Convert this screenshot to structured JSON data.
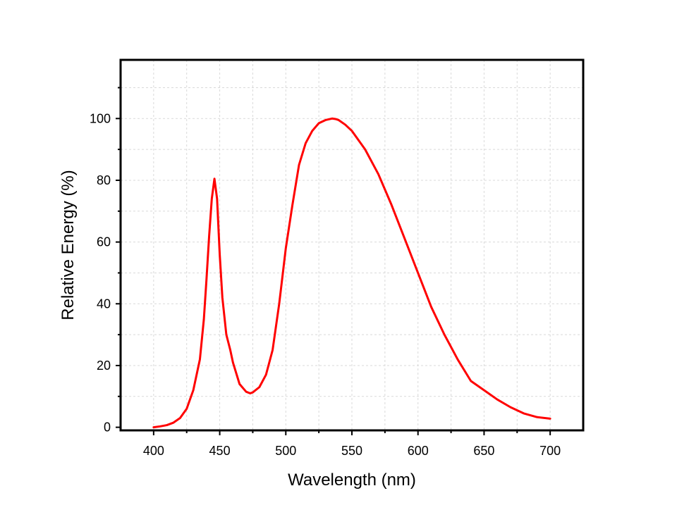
{
  "chart_data": {
    "type": "line",
    "title": "",
    "xlabel": "Wavelength (nm)",
    "ylabel": "Relative Energy (%)",
    "xlim": [
      375,
      725
    ],
    "ylim": [
      -1,
      119
    ],
    "xticks": [
      400,
      450,
      500,
      550,
      600,
      650,
      700
    ],
    "yticks": [
      0,
      20,
      40,
      60,
      80,
      100
    ],
    "xtick_labels": [
      "400",
      "450",
      "500",
      "550",
      "600",
      "650",
      "700"
    ],
    "ytick_labels": [
      "0",
      "20",
      "40",
      "60",
      "80",
      "100"
    ],
    "grid": true,
    "line_color": "#ff0000",
    "series": [
      {
        "x": [
          400,
          405,
          410,
          415,
          420,
          425,
          430,
          435,
          438,
          440,
          442,
          444,
          446,
          448,
          450,
          452,
          455,
          458,
          460,
          465,
          470,
          473,
          475,
          480,
          485,
          490,
          495,
          500,
          505,
          510,
          515,
          520,
          525,
          530,
          535,
          538,
          540,
          545,
          550,
          555,
          560,
          570,
          580,
          590,
          600,
          610,
          620,
          630,
          640,
          650,
          660,
          670,
          680,
          690,
          700
        ],
        "y": [
          0,
          0.3,
          0.7,
          1.5,
          3,
          6,
          12,
          22,
          35,
          48,
          62,
          74,
          80.5,
          74,
          56,
          42,
          30,
          25,
          21,
          14,
          11.5,
          11,
          11.3,
          13,
          17,
          25,
          40,
          58,
          72,
          85,
          92,
          96,
          98.5,
          99.5,
          100,
          99.8,
          99.5,
          98,
          96,
          93,
          90,
          82,
          72,
          61,
          50,
          39,
          30,
          22,
          15,
          12,
          9,
          6.5,
          4.5,
          3.3,
          2.8
        ]
      }
    ]
  }
}
